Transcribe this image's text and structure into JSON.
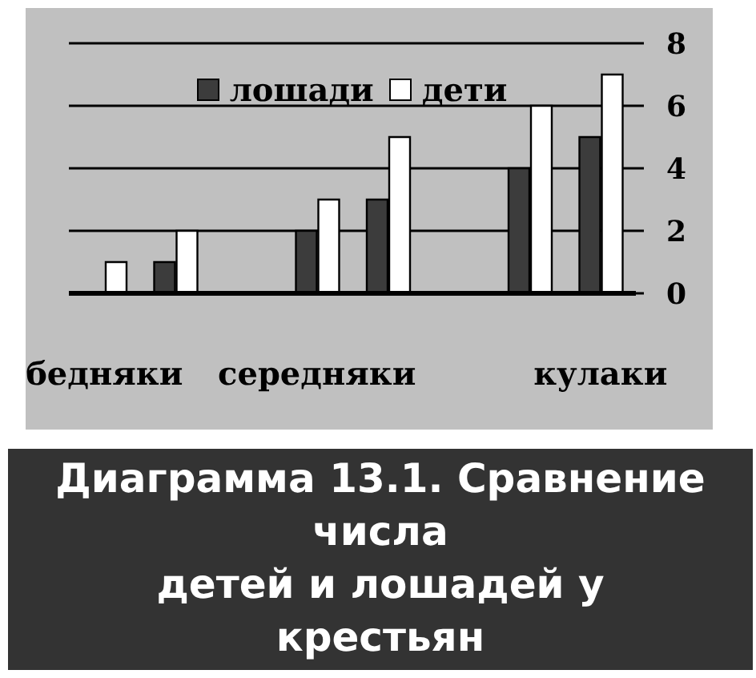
{
  "chart_data": {
    "type": "bar",
    "categories": [
      "бедняки",
      null,
      null,
      "середняки",
      null,
      null,
      null,
      "кулаки"
    ],
    "series": [
      {
        "name": "лошади",
        "color": "#3c3c3c",
        "values": [
          0,
          1,
          null,
          2,
          3,
          null,
          4,
          5
        ]
      },
      {
        "name": "дети",
        "color": "#ffffff",
        "values": [
          1,
          2,
          null,
          3,
          5,
          null,
          6,
          7
        ]
      }
    ],
    "ylim": [
      0,
      8
    ],
    "yticks": [
      0,
      2,
      4,
      6,
      8
    ],
    "grid": "y",
    "legend": "top",
    "annotations": [
      "Диаграмма 13.1. Сравнение\nчисла\nдетей и лошадей у\nкрестьян"
    ]
  }
}
